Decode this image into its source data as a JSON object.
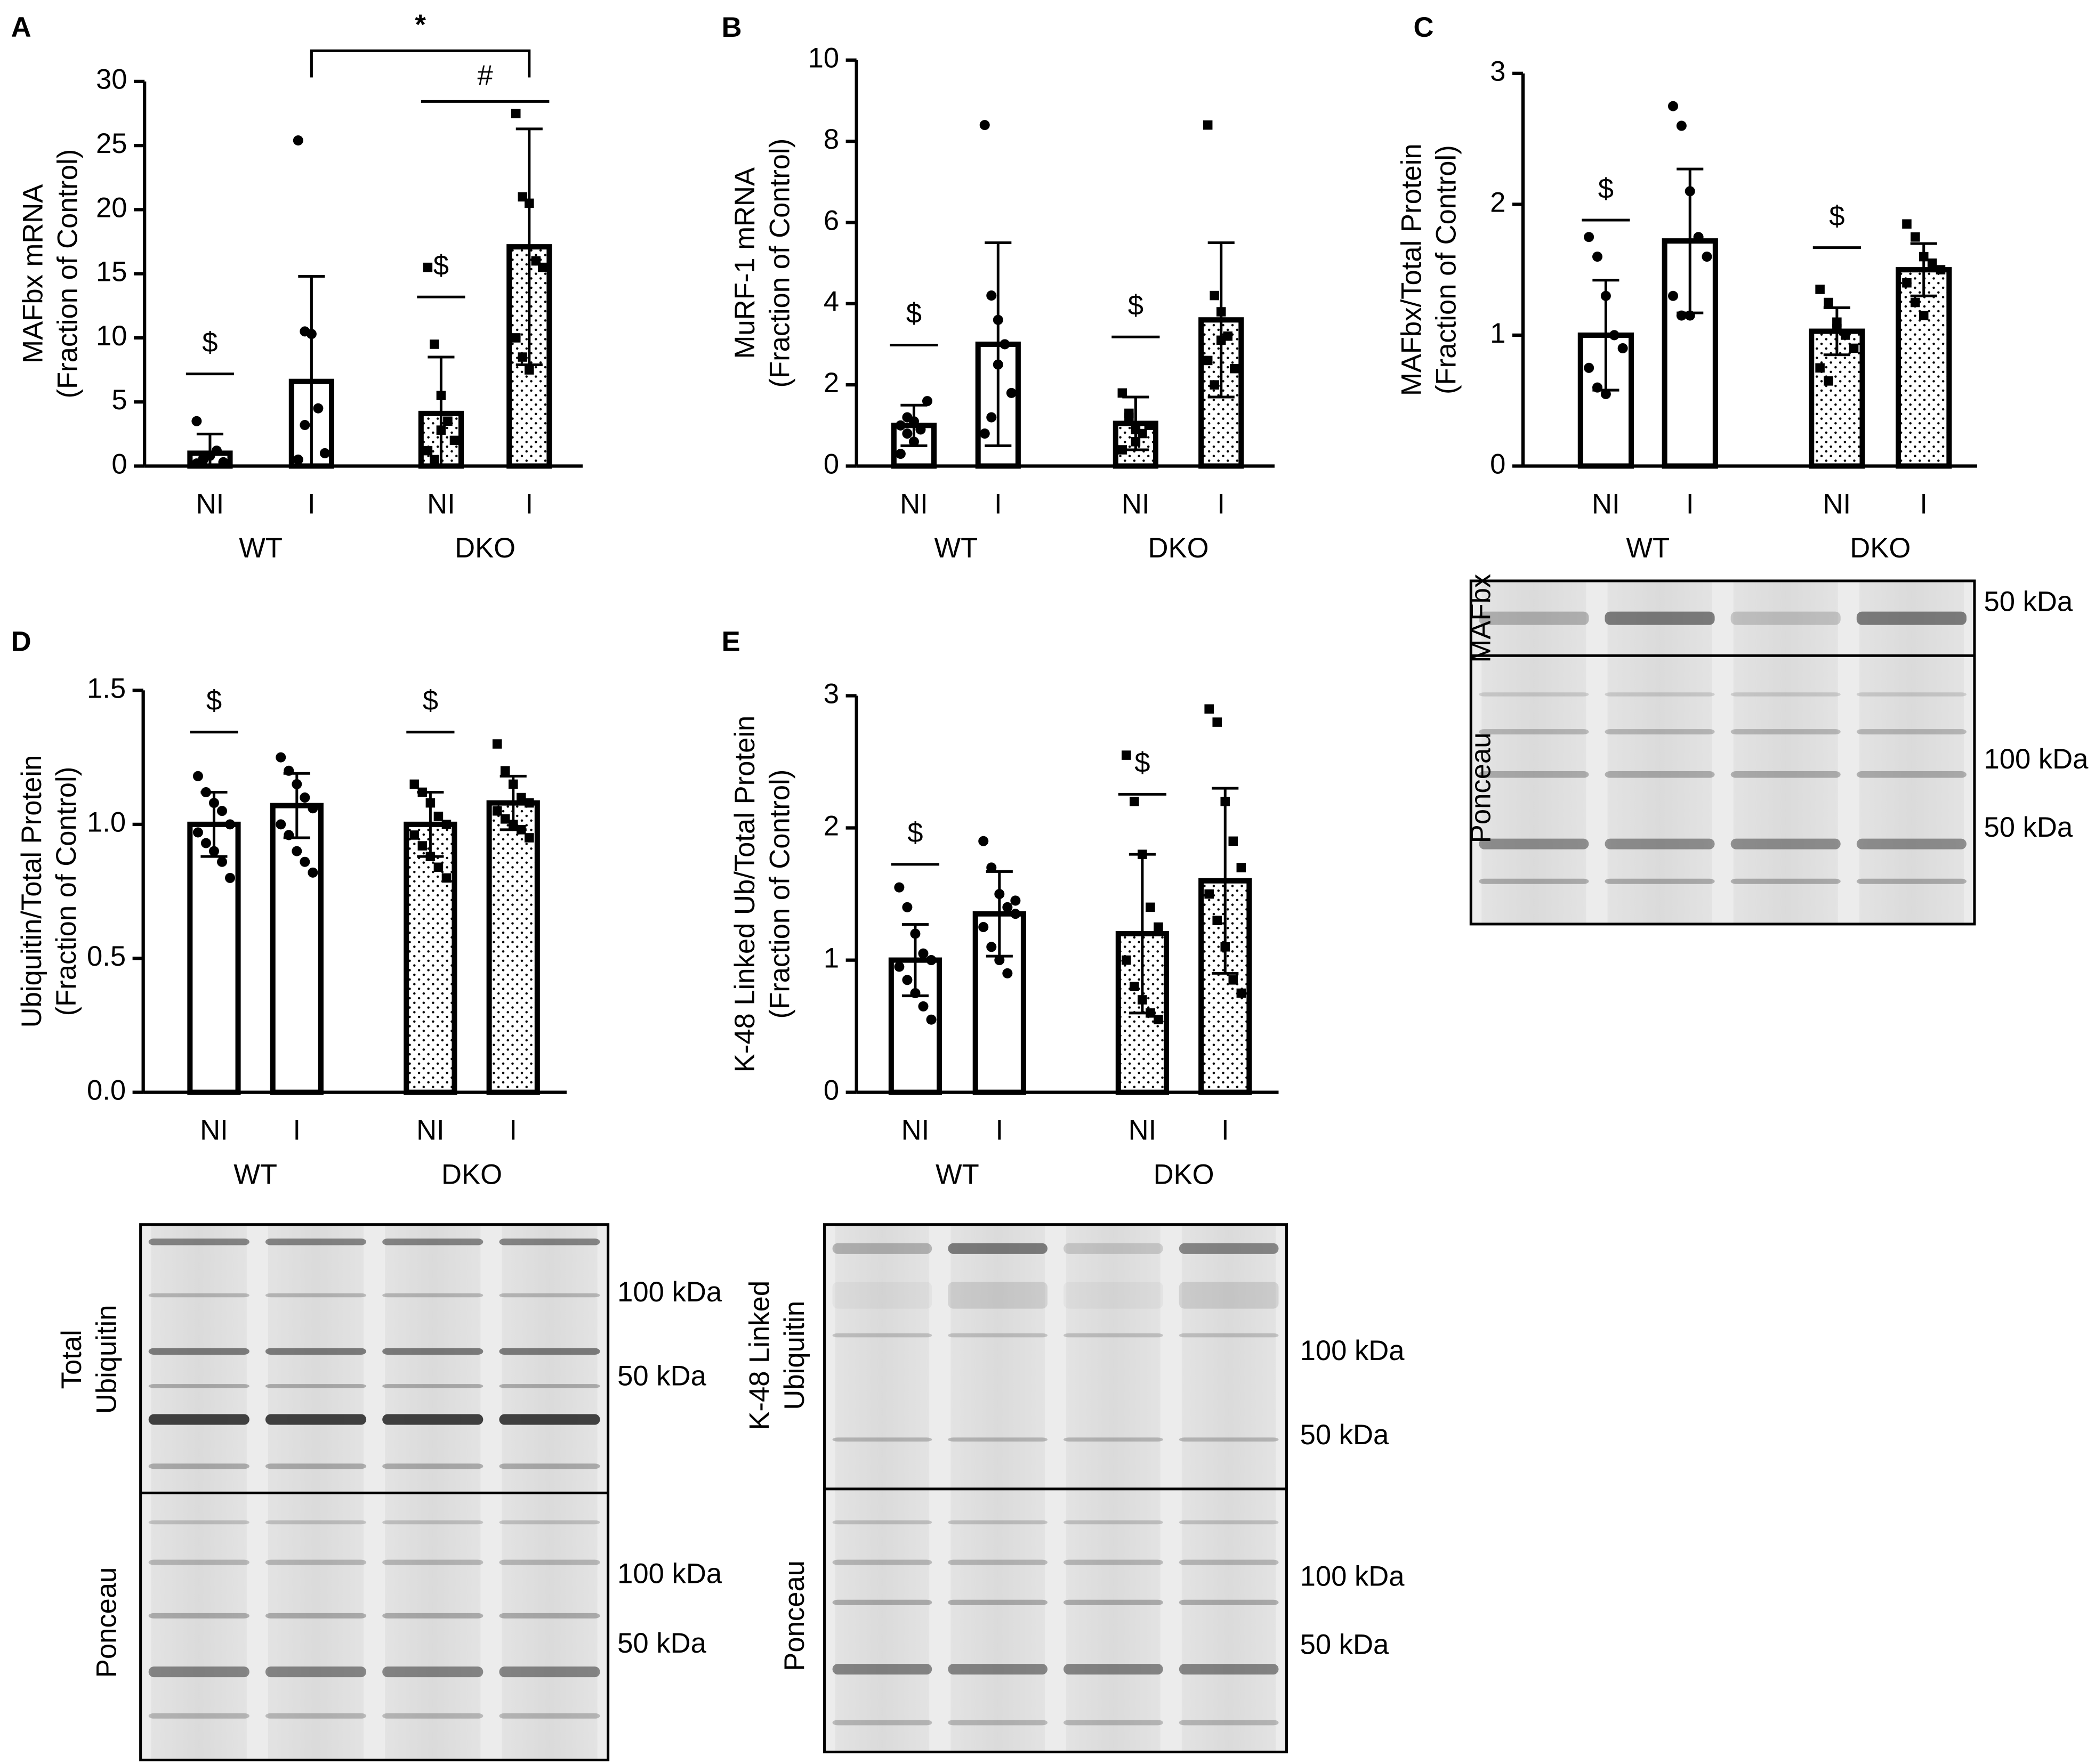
{
  "chart_data": [
    {
      "type": "bar",
      "panel": "A",
      "ylabel": [
        "MAFbx mRNA",
        "(Fraction of Control)"
      ],
      "categories": [
        "NI",
        "I",
        "NI",
        "I"
      ],
      "groups": [
        "WT",
        "DKO"
      ],
      "values": [
        1,
        6.6,
        4.1,
        17.1
      ],
      "errors": [
        1.5,
        8.2,
        4.4,
        9.2
      ],
      "patterns": [
        "open",
        "open",
        "dotted",
        "dotted"
      ],
      "markers": [
        "circle",
        "circle",
        "square",
        "square"
      ],
      "points": [
        [
          0.2,
          0.5,
          0.8,
          1.2,
          0.3,
          3.5,
          0.6
        ],
        [
          25.4,
          10.5,
          10.3,
          4.5,
          1,
          0.5,
          3.2
        ],
        [
          15.5,
          9.5,
          5.5,
          3.5,
          2,
          1.2,
          0.5,
          2.8
        ],
        [
          27.5,
          21,
          20.5,
          16,
          15.5,
          10,
          8.5,
          7.5
        ]
      ],
      "ylim": [
        0,
        30
      ],
      "yticks": [
        0,
        5,
        10,
        15,
        20,
        25,
        30
      ],
      "annotations": [
        {
          "text": "$",
          "bar": 0
        },
        {
          "text": "$",
          "bar": 2
        }
      ],
      "brackets": [
        {
          "text": "*",
          "from": 1,
          "to": 3
        },
        {
          "text": "#",
          "from": 2,
          "to": 3
        }
      ]
    },
    {
      "type": "bar",
      "panel": "B",
      "ylabel": [
        "MuRF-1 mRNA",
        "(Fraction of Control)"
      ],
      "categories": [
        "NI",
        "I",
        "NI",
        "I"
      ],
      "groups": [
        "WT",
        "DKO"
      ],
      "values": [
        1.0,
        3.0,
        1.05,
        3.6
      ],
      "errors": [
        0.5,
        2.5,
        0.65,
        1.9
      ],
      "patterns": [
        "open",
        "open",
        "dotted",
        "dotted"
      ],
      "markers": [
        "circle",
        "circle",
        "square",
        "square"
      ],
      "points": [
        [
          1.0,
          1.2,
          0.6,
          0.9,
          1.6,
          0.3,
          0.8,
          1.1
        ],
        [
          8.4,
          4.2,
          3.6,
          3.0,
          1.8,
          0.8,
          1.2,
          2.5
        ],
        [
          1.8,
          1.3,
          0.6,
          0.8,
          1.0,
          0.4,
          1.2,
          0.9
        ],
        [
          8.4,
          4.2,
          3.8,
          3.2,
          2.4,
          2.6,
          2.0,
          3.1
        ]
      ],
      "ylim": [
        0,
        10
      ],
      "yticks": [
        0,
        2,
        4,
        6,
        8,
        10
      ],
      "annotations": [
        {
          "text": "$",
          "bar": 0
        },
        {
          "text": "$",
          "bar": 2
        }
      ],
      "brackets": []
    },
    {
      "type": "bar",
      "panel": "C",
      "ylabel": [
        "MAFbx/Total Protein",
        "(Fraction of Control)"
      ],
      "categories": [
        "NI",
        "I",
        "NI",
        "I"
      ],
      "groups": [
        "WT",
        "DKO"
      ],
      "values": [
        1.0,
        1.72,
        1.03,
        1.5
      ],
      "errors": [
        0.42,
        0.55,
        0.18,
        0.2
      ],
      "patterns": [
        "open",
        "open",
        "dotted",
        "dotted"
      ],
      "markers": [
        "circle",
        "circle",
        "square",
        "square"
      ],
      "points": [
        [
          1.75,
          1.6,
          1.3,
          1.0,
          0.9,
          0.75,
          0.6,
          0.55
        ],
        [
          2.75,
          2.6,
          2.1,
          1.75,
          1.6,
          1.3,
          1.15,
          1.15
        ],
        [
          1.35,
          1.25,
          1.1,
          1.0,
          0.9,
          0.75,
          0.65,
          1.05
        ],
        [
          1.85,
          1.75,
          1.6,
          1.55,
          1.5,
          1.4,
          1.25,
          1.15
        ]
      ],
      "ylim": [
        0,
        3
      ],
      "yticks": [
        0,
        1,
        2,
        3
      ],
      "annotations": [
        {
          "text": "$",
          "bar": 0
        },
        {
          "text": "$",
          "bar": 2
        }
      ],
      "brackets": []
    },
    {
      "type": "bar",
      "panel": "D",
      "ylabel": [
        "Ubiquitin/Total Protein",
        "(Fraction of Control)"
      ],
      "categories": [
        "NI",
        "I",
        "NI",
        "I"
      ],
      "groups": [
        "WT",
        "DKO"
      ],
      "values": [
        1.0,
        1.07,
        1.0,
        1.08
      ],
      "errors": [
        0.12,
        0.12,
        0.12,
        0.1
      ],
      "patterns": [
        "open",
        "open",
        "dotted",
        "dotted"
      ],
      "markers": [
        "circle",
        "circle",
        "square",
        "square"
      ],
      "points": [
        [
          1.18,
          1.12,
          1.08,
          1.05,
          1.0,
          0.97,
          0.93,
          0.9,
          0.86,
          0.8
        ],
        [
          1.25,
          1.2,
          1.15,
          1.1,
          1.06,
          1.0,
          0.96,
          0.9,
          0.86,
          0.82
        ],
        [
          1.15,
          1.12,
          1.08,
          1.03,
          1.0,
          0.96,
          0.92,
          0.88,
          0.84,
          0.8
        ],
        [
          1.3,
          1.2,
          1.15,
          1.1,
          1.08,
          1.05,
          1.02,
          1.0,
          0.98,
          0.95
        ]
      ],
      "ylim": [
        0,
        1.5
      ],
      "yticks": [
        {
          "value": 0,
          "label": "0.0"
        },
        0.5,
        {
          "value": 1,
          "label": "1.0"
        },
        1.5
      ],
      "annotations": [
        {
          "text": "$",
          "bar": 0
        },
        {
          "text": "$",
          "bar": 2
        }
      ],
      "brackets": []
    },
    {
      "type": "bar",
      "panel": "E",
      "ylabel": [
        "K-48 Linked Ub/Total Protein",
        "(Fraction of Control)"
      ],
      "categories": [
        "NI",
        "I",
        "NI",
        "I"
      ],
      "groups": [
        "WT",
        "DKO"
      ],
      "values": [
        1.0,
        1.35,
        1.2,
        1.6
      ],
      "errors": [
        0.27,
        0.32,
        0.6,
        0.7
      ],
      "patterns": [
        "open",
        "open",
        "dotted",
        "dotted"
      ],
      "markers": [
        "circle",
        "circle",
        "square",
        "square"
      ],
      "points": [
        [
          1.55,
          1.4,
          1.2,
          1.05,
          1.0,
          0.95,
          0.85,
          0.75,
          0.65,
          0.55
        ],
        [
          1.9,
          1.7,
          1.5,
          1.4,
          1.35,
          1.25,
          1.1,
          1.0,
          0.9,
          1.45
        ],
        [
          2.55,
          2.2,
          1.8,
          1.4,
          1.25,
          1.0,
          0.8,
          0.7,
          0.6,
          0.55
        ],
        [
          2.9,
          2.8,
          2.2,
          1.9,
          1.7,
          1.5,
          1.3,
          1.1,
          0.85,
          0.75
        ]
      ],
      "ylim": [
        0,
        3
      ],
      "yticks": [
        0,
        1,
        2,
        3
      ],
      "annotations": [
        {
          "text": "$",
          "bar": 0
        },
        {
          "text": "$",
          "bar": 2
        }
      ],
      "brackets": []
    }
  ],
  "blots": [
    {
      "left": [
        "MAFbx"
      ],
      "left2": [
        "Ponceau"
      ],
      "kda_top": [
        "50 kDa"
      ],
      "kda_bottom": [
        "100 kDa",
        "50 kDa"
      ]
    },
    {
      "left": [
        "Total",
        "Ubiquitin"
      ],
      "left2": [
        "Ponceau"
      ],
      "kda_top": [
        "100 kDa",
        "50 kDa"
      ],
      "kda_bottom": [
        "100 kDa",
        "50 kDa"
      ]
    },
    {
      "left": [
        "K-48 Linked",
        "Ubiquitin"
      ],
      "left2": [
        "Ponceau"
      ],
      "kda_top": [
        "100 kDa",
        "50 kDa"
      ],
      "kda_bottom": [
        "100 kDa",
        "50 kDa"
      ]
    }
  ]
}
